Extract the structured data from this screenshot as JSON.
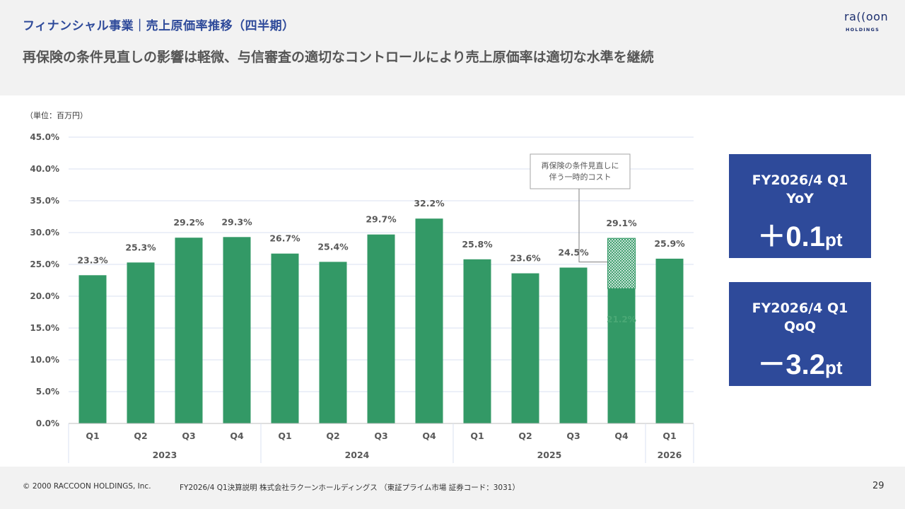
{
  "header": {
    "title": "フィナンシャル事業｜売上原価率推移（四半期）",
    "headline": "再保険の条件見直しの影響は軽微、与信審査の適切なコントロールにより売上原価率は適切な水準を継続"
  },
  "logo": {
    "line1": "ra((oon",
    "line2": "HOLDINGS"
  },
  "unit_label": "（単位：百万円）",
  "kpi": [
    {
      "line1": "FY2026/4 Q1",
      "line2": "YoY",
      "sign": "＋",
      "value": "0.1",
      "unit": "pt"
    },
    {
      "line1": "FY2026/4 Q1",
      "line2": "QoQ",
      "sign": "－",
      "value": "3.2",
      "unit": "pt"
    }
  ],
  "footer": {
    "copyright": "© 2000 RACCOON HOLDINGS, Inc.",
    "doc": "FY2026/4 Q1決算説明 株式会社ラクーンホールディングス （東証プライム市場 証券コード：3031）",
    "page": "29"
  },
  "colors": {
    "bar": "#339966",
    "accent": "#2e4a9a",
    "grid": "#d9e1f2",
    "text": "#595959"
  },
  "chart_data": {
    "type": "bar",
    "ylim": [
      0,
      45
    ],
    "ytick_labels": [
      "0.0%",
      "5.0%",
      "10.0%",
      "15.0%",
      "20.0%",
      "25.0%",
      "30.0%",
      "35.0%",
      "40.0%",
      "45.0%"
    ],
    "grid": true,
    "categories": [
      "Q1",
      "Q2",
      "Q3",
      "Q4",
      "Q1",
      "Q2",
      "Q3",
      "Q4",
      "Q1",
      "Q2",
      "Q3",
      "Q4",
      "Q1"
    ],
    "groups": [
      {
        "label": "2023",
        "count": 4
      },
      {
        "label": "2024",
        "count": 4
      },
      {
        "label": "2025",
        "count": 4
      },
      {
        "label": "2026",
        "count": 1
      }
    ],
    "values": [
      23.3,
      25.3,
      29.2,
      29.3,
      26.7,
      25.4,
      29.7,
      32.2,
      25.8,
      23.6,
      24.5,
      29.1,
      25.9
    ],
    "labels": [
      "23.3%",
      "25.3%",
      "29.2%",
      "29.3%",
      "26.7%",
      "25.4%",
      "29.7%",
      "32.2%",
      "25.8%",
      "23.6%",
      "24.5%",
      "29.1%",
      "25.9%"
    ],
    "split": {
      "index": 11,
      "base_value": 21.2,
      "base_label": "21.2%",
      "pattern": "hatched"
    },
    "annotation": {
      "lines": [
        "再保険の条件見直しに",
        "伴う一時的コスト"
      ],
      "target_index": 11
    }
  }
}
